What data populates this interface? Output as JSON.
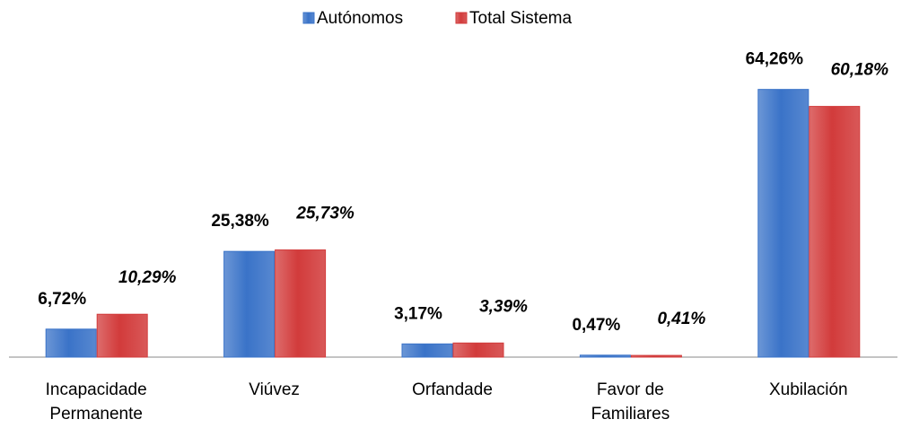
{
  "chart_data": {
    "type": "bar",
    "categories": [
      "Incapacidade Permanente",
      "Viúvez",
      "Orfandade",
      "Favor de Familiares",
      "Xubilación"
    ],
    "series": [
      {
        "name": "Autónomos",
        "color": "#3a73c8",
        "values": [
          6.72,
          25.38,
          3.17,
          0.47,
          64.26
        ],
        "value_labels": [
          "6,72%",
          "25,38%",
          "3,17%",
          "0,47%",
          "64,26%"
        ]
      },
      {
        "name": "Total Sistema",
        "color": "#d23b3b",
        "values": [
          10.29,
          25.73,
          3.39,
          0.41,
          60.18
        ],
        "value_labels": [
          "10,29%",
          "25,73%",
          "3,39%",
          "0,41%",
          "60,18%"
        ]
      }
    ],
    "ylim": [
      0,
      70
    ],
    "legend": "top"
  }
}
